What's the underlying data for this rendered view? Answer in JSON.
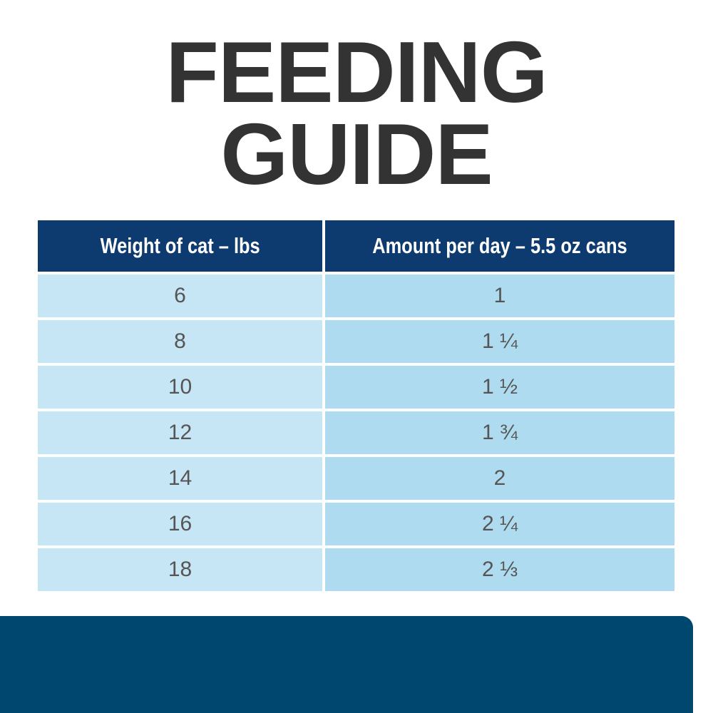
{
  "title": {
    "line1": "FEEDING",
    "line2": "GUIDE"
  },
  "table": {
    "headers": [
      "Weight of cat – lbs",
      "Amount per day – 5.5 oz cans"
    ],
    "rows": [
      [
        "6",
        "1"
      ],
      [
        "8",
        "1 ¼"
      ],
      [
        "10",
        "1 ½"
      ],
      [
        "12",
        "1 ¾"
      ],
      [
        "14",
        "2"
      ],
      [
        "16",
        "2 ¼"
      ],
      [
        "18",
        "2 ⅓"
      ]
    ]
  },
  "colors": {
    "header": "#0d3b70",
    "col1": "#c6e5f5",
    "col2": "#aedbef",
    "panel": "#00476f",
    "title": "#333333"
  }
}
